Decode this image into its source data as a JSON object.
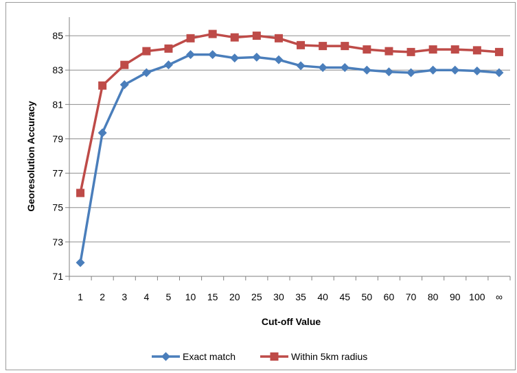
{
  "chart_data": {
    "type": "line",
    "title": "",
    "xlabel": "Cut-off Value",
    "ylabel": "Georesolution Accuracy",
    "categories": [
      "1",
      "2",
      "3",
      "4",
      "5",
      "10",
      "15",
      "20",
      "25",
      "30",
      "35",
      "40",
      "45",
      "50",
      "60",
      "70",
      "80",
      "90",
      "100",
      "∞"
    ],
    "ylim": [
      71,
      86
    ],
    "yticks": [
      "71",
      "73",
      "75",
      "77",
      "79",
      "81",
      "83",
      "85"
    ],
    "grid": true,
    "legend": "bottom",
    "series": [
      {
        "name": "Exact match",
        "marker": "diamond",
        "color": "#4a7ebb",
        "values": [
          71.8,
          79.35,
          82.15,
          82.85,
          83.3,
          83.9,
          83.9,
          83.7,
          83.75,
          83.6,
          83.25,
          83.15,
          83.15,
          83.0,
          82.9,
          82.85,
          83.0,
          83.0,
          82.95,
          82.85
        ]
      },
      {
        "name": "Within 5km radius",
        "marker": "square",
        "color": "#be4b48",
        "values": [
          75.85,
          82.1,
          83.3,
          84.1,
          84.25,
          84.85,
          85.1,
          84.9,
          85.0,
          84.85,
          84.45,
          84.4,
          84.4,
          84.2,
          84.1,
          84.05,
          84.2,
          84.2,
          84.15,
          84.05
        ]
      }
    ]
  }
}
